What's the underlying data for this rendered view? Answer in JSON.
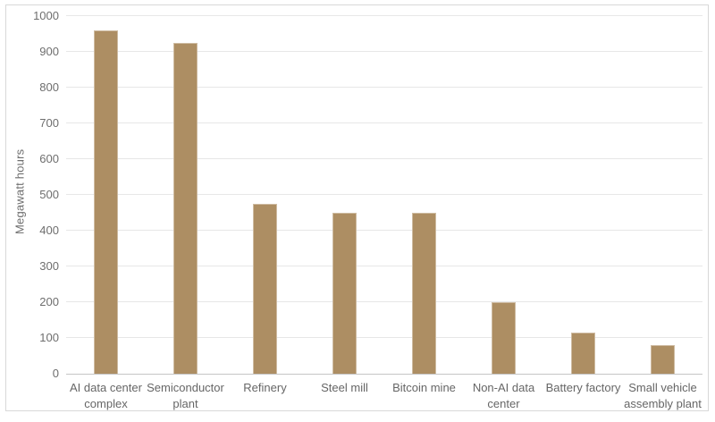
{
  "chart_data": {
    "type": "bar",
    "title": "",
    "xlabel": "",
    "ylabel": "Megawatt hours",
    "categories": [
      "AI data center\ncomplex",
      "Semiconductor\nplant",
      "Refinery",
      "Steel mill",
      "Bitcoin mine",
      "Non-AI data\ncenter",
      "Battery factory",
      "Small vehicle\nassembly plant"
    ],
    "values": [
      960,
      925,
      475,
      450,
      450,
      200,
      115,
      80
    ],
    "ylim": [
      0,
      1000
    ],
    "yticks": [
      0,
      100,
      200,
      300,
      400,
      500,
      600,
      700,
      800,
      900,
      1000
    ],
    "grid": "horizontal",
    "legend": "none",
    "bar_color": "#AD8E63"
  },
  "colors": {
    "bar": "#AD8E63",
    "gridline": "#e7e7e7",
    "axis_line": "#c6c6c6",
    "tick_text": "#6e6e6e",
    "category_text": "#666666",
    "frame_border": "#d8d8d8",
    "background": "#ffffff"
  }
}
